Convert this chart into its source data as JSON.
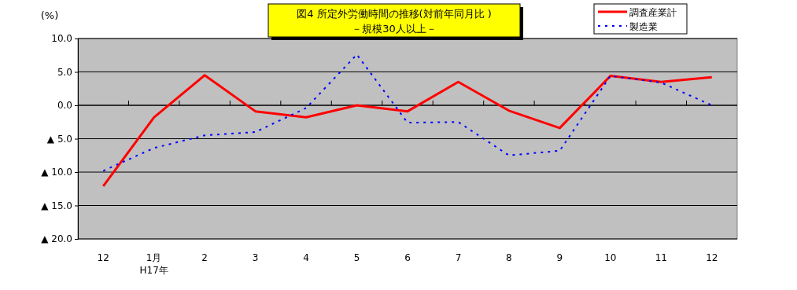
{
  "chart_data": {
    "type": "line",
    "title": "図4  所定外労働時間の推移(対前年同月比 )",
    "subtitle": "－規模30人以上－",
    "ylabel": "(%)",
    "categories": [
      "12",
      "1月\nH17年",
      "2",
      "3",
      "4",
      "5",
      "6",
      "7",
      "8",
      "9",
      "10",
      "11",
      "12"
    ],
    "series": [
      {
        "name": "調査産業計",
        "color": "#ff0000",
        "line_style": "solid",
        "values": [
          -12.1,
          -1.8,
          4.5,
          -0.9,
          -1.8,
          0.0,
          -0.9,
          3.5,
          -0.8,
          -3.4,
          4.4,
          3.5,
          4.2
        ]
      },
      {
        "name": "製造業",
        "color": "#0000ff",
        "line_style": "dotted",
        "values": [
          -9.8,
          -6.4,
          -4.5,
          -4.0,
          -0.4,
          7.6,
          -2.6,
          -2.5,
          -7.5,
          -6.8,
          4.4,
          3.4,
          0.0
        ]
      }
    ],
    "ylim": [
      -20,
      10
    ],
    "yticks": [
      {
        "value": 10,
        "label": "10.0"
      },
      {
        "value": 5,
        "label": "5.0"
      },
      {
        "value": 0,
        "label": "0.0"
      },
      {
        "value": -5,
        "label": "▲ 5.0"
      },
      {
        "value": -10,
        "label": "▲ 10.0"
      },
      {
        "value": -15,
        "label": "▲ 15.0"
      },
      {
        "value": -20,
        "label": "▲ 20.0"
      }
    ],
    "grid": "y",
    "legend": "top right",
    "marker": "none"
  }
}
